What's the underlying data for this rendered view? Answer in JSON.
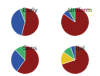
{
  "chart_data": [
    {
      "type": "pie",
      "title": "Early",
      "values": [
        54,
        40,
        6
      ],
      "colors": [
        "#8b1a1a",
        "#2f55a4",
        "#3fae6a"
      ]
    },
    {
      "type": "pie",
      "title": "Uniform",
      "values": [
        85,
        7,
        8
      ],
      "colors": [
        "#8b1a1a",
        "#2f55a4",
        "#3fae6a"
      ]
    },
    {
      "type": "pie",
      "title": "Sens",
      "values": [
        60,
        28,
        12
      ],
      "colors": [
        "#8b1a1a",
        "#2f55a4",
        "#3fae6a"
      ]
    },
    {
      "type": "pie",
      "title": "Bal",
      "values": [
        70,
        15,
        10,
        5
      ],
      "colors": [
        "#8b1a1a",
        "#e8c22a",
        "#3fae6a",
        "#2f55a4"
      ]
    }
  ]
}
